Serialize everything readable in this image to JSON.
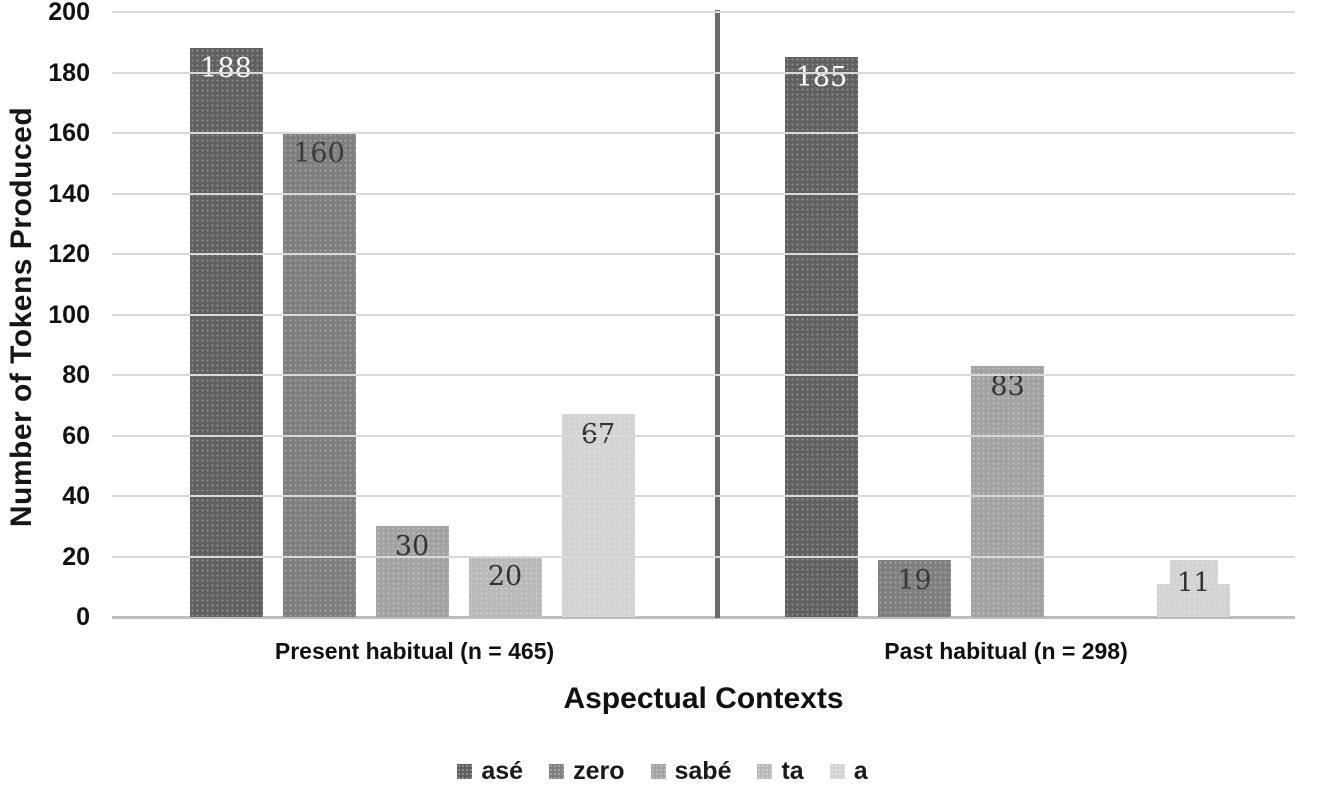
{
  "chart_data": {
    "type": "bar",
    "title": "",
    "xlabel": "Aspectual Contexts",
    "ylabel": "Number of Tokens Produced",
    "ylim": [
      0,
      200
    ],
    "yticks": [
      0,
      20,
      40,
      60,
      80,
      100,
      120,
      140,
      160,
      180,
      200
    ],
    "grid": "horizontal gridlines on",
    "legend_position": "bottom-center",
    "categories": [
      "Present habitual (n = 465)",
      "Past habitual (n = 298)"
    ],
    "series": [
      {
        "name": "asé",
        "color": "#606060",
        "label_color": "#ffffff",
        "values": [
          188,
          185
        ]
      },
      {
        "name": "zero",
        "color": "#7f7f7f",
        "label_color": "#3a3a3a",
        "values": [
          160,
          19
        ]
      },
      {
        "name": "sabé",
        "color": "#a2a2a2",
        "label_color": "#333333",
        "values": [
          30,
          83
        ]
      },
      {
        "name": "ta",
        "color": "#b9b9b9",
        "label_color": "#333333",
        "values": [
          20,
          0
        ]
      },
      {
        "name": "a",
        "color": "#d3d3d3",
        "label_color": "#333333",
        "values": [
          67,
          11
        ]
      }
    ],
    "annotations": {
      "group_divider": "vertical dark line separating the two aspectual context groups",
      "small_bar_label_note": "value 11 label shown in small gray box protruding above bar"
    },
    "colors": {
      "gridline": "#d9d9d9",
      "axis_line": "#bdbdbd",
      "divider": "#6b6b6b",
      "text": "#111111"
    }
  }
}
